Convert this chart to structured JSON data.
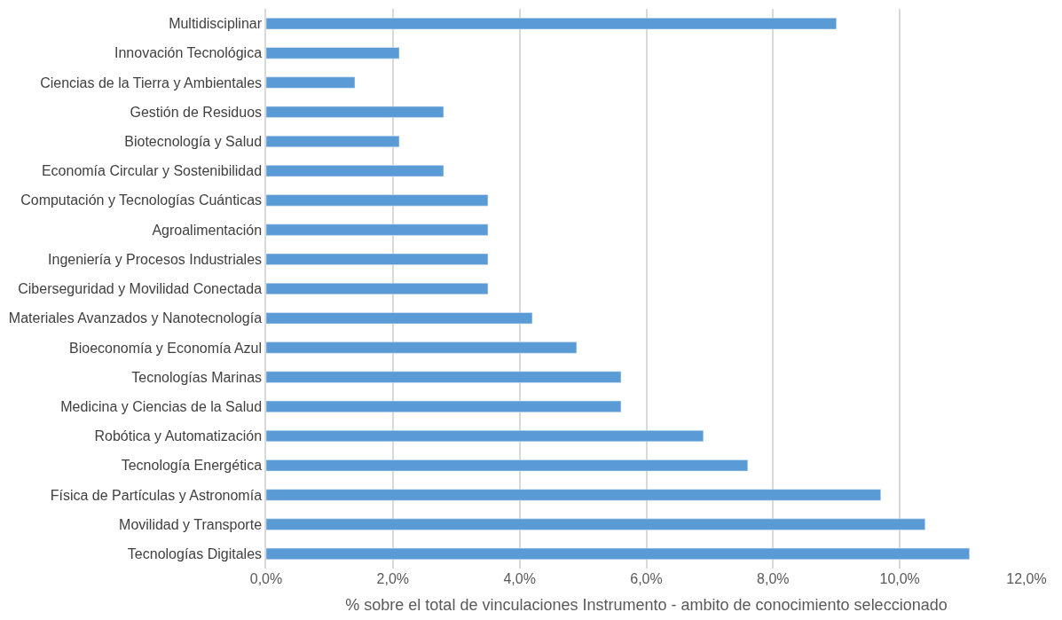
{
  "chart_data": {
    "type": "bar",
    "orientation": "horizontal",
    "xlabel": "% sobre el total de vinculaciones Instrumento - ambito de conocimiento seleccionado",
    "categories": [
      "Multidisciplinar",
      "Innovación Tecnológica",
      "Ciencias de la Tierra y Ambientales",
      "Gestión de Residuos",
      "Biotecnología y Salud",
      "Economía Circular y Sostenibilidad",
      "Computación y Tecnologías Cuánticas",
      "Agroalimentación",
      "Ingeniería y Procesos Industriales",
      "Ciberseguridad y Movilidad Conectada",
      "Materiales Avanzados y Nanotecnología",
      "Bioeconomía y Economía Azul",
      "Tecnologías Marinas",
      "Medicina y Ciencias de la Salud",
      "Robótica y Automatización",
      "Tecnología Energética",
      "Física de Partículas y Astronomía",
      "Movilidad y Transporte",
      "Tecnologías Digitales"
    ],
    "values": [
      9.0,
      2.1,
      1.4,
      2.8,
      2.1,
      2.8,
      3.5,
      3.5,
      3.5,
      3.5,
      4.2,
      4.9,
      5.6,
      5.6,
      6.9,
      7.6,
      9.7,
      10.4,
      11.1
    ],
    "color": "#5b9bd5",
    "xlim": [
      0,
      12
    ],
    "xticks": [
      {
        "value": 0,
        "label": "0,0%"
      },
      {
        "value": 2,
        "label": "2,0%"
      },
      {
        "value": 4,
        "label": "4,0%"
      },
      {
        "value": 6,
        "label": "6,0%"
      },
      {
        "value": 8,
        "label": "8,0%"
      },
      {
        "value": 10,
        "label": "10,0%"
      },
      {
        "value": 12,
        "label": "12,0%"
      }
    ],
    "grid": "x",
    "legend": false
  }
}
